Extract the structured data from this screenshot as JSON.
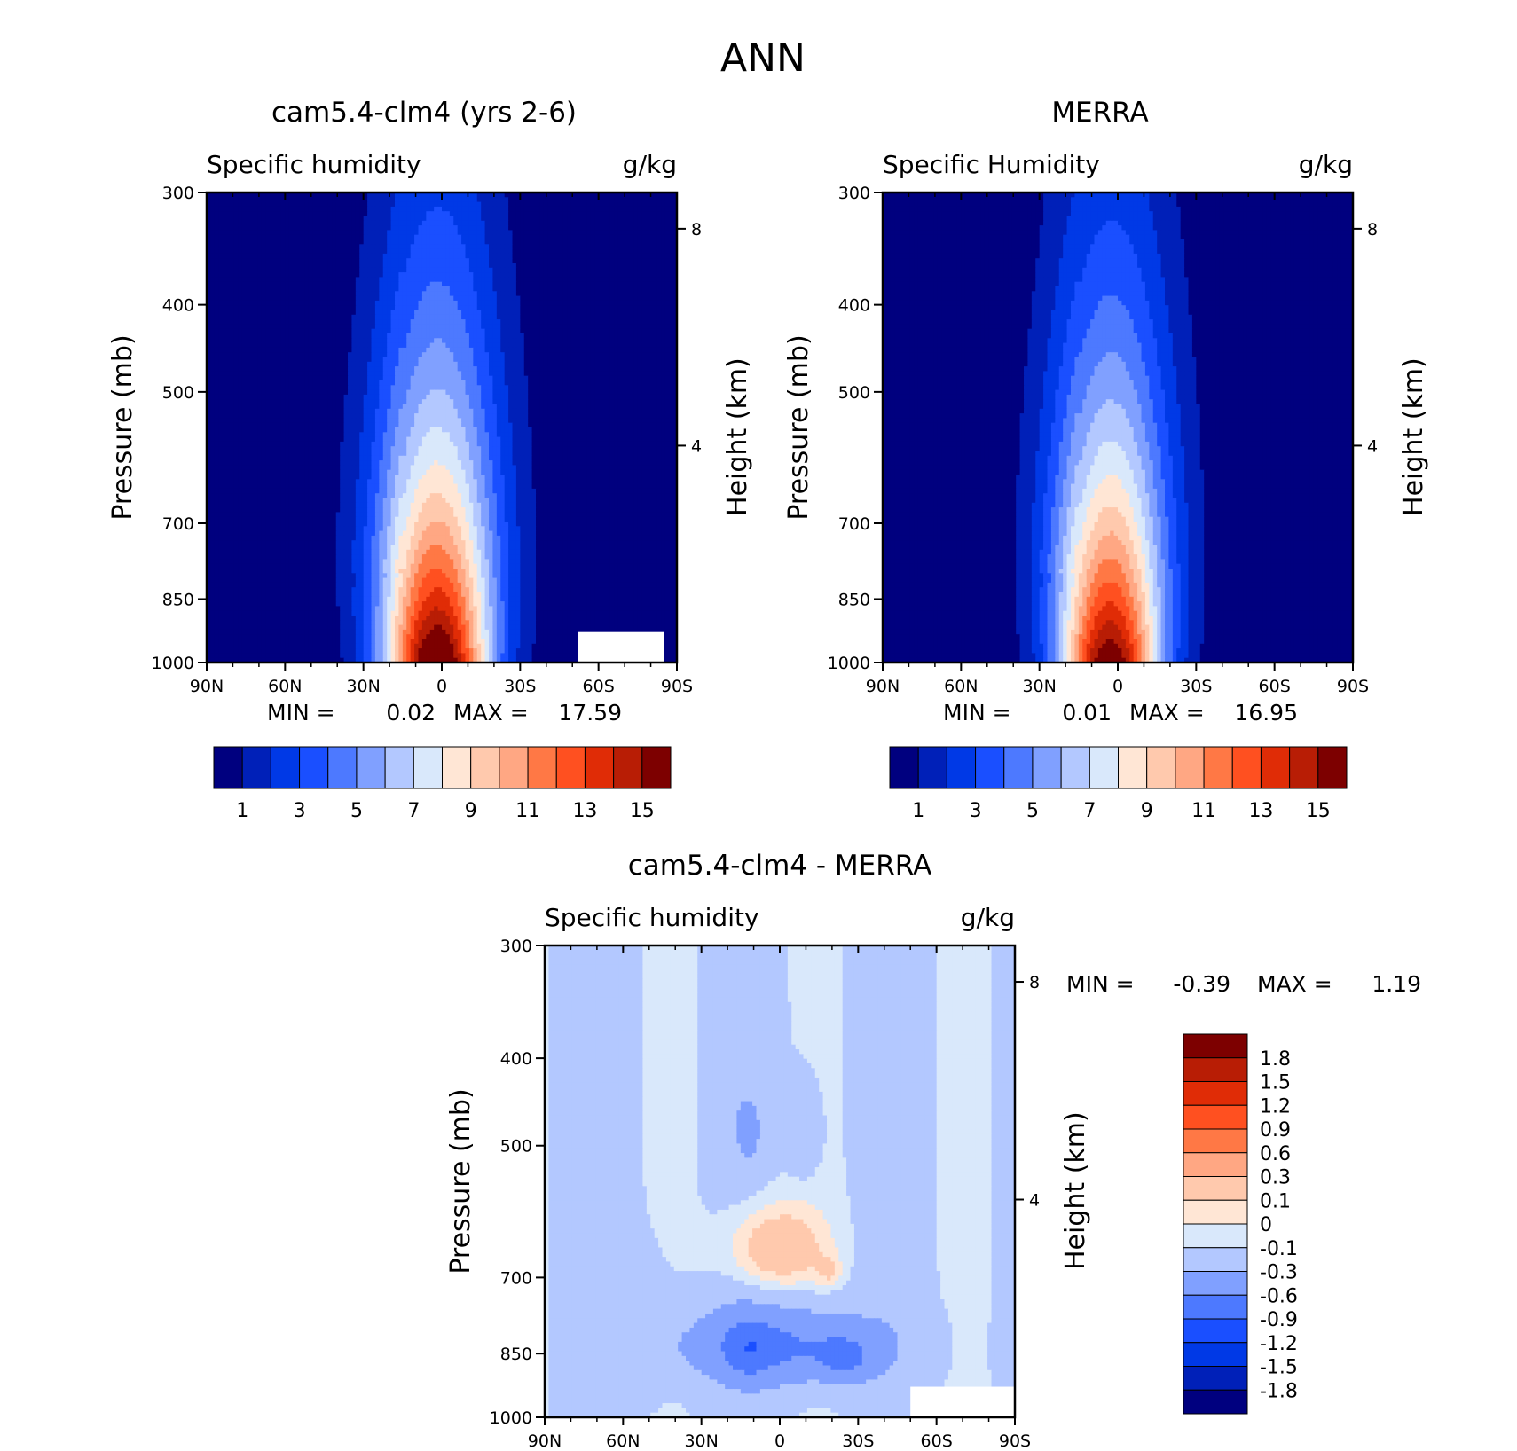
{
  "figure_title": "ANN",
  "chart_data": [
    {
      "type": "heatmap",
      "panel": "model",
      "title": "cam5.4-clm4 (yrs 2-6)",
      "left_label": "Specific humidity",
      "right_label": "g/kg",
      "ylabel": "Pressure (mb)",
      "ylabel_right": "Height (km)",
      "x_ticks": [
        "90N",
        "60N",
        "30N",
        "0",
        "30S",
        "60S",
        "90S"
      ],
      "y_ticks": [
        "300",
        "400",
        "500",
        "700",
        "850",
        "1000"
      ],
      "y_ticks_right": [
        "8",
        "4"
      ],
      "xlim": [
        90,
        -90
      ],
      "ylim": [
        1000,
        300
      ],
      "min_label": "MIN =",
      "min_value": "0.02",
      "max_label": "MAX =",
      "max_value": "17.59",
      "min": 0.02,
      "max": 17.59,
      "levels": [
        1,
        2,
        3,
        4,
        5,
        6,
        7,
        8,
        9,
        10,
        11,
        12,
        13,
        14,
        15
      ],
      "colorbar_labels": [
        "1",
        "3",
        "5",
        "7",
        "9",
        "11",
        "13",
        "15"
      ],
      "colorbar": "horizontal",
      "missing_region": {
        "lat": [
          -52,
          -85
        ],
        "pressure": [
          925,
          1000
        ]
      }
    },
    {
      "type": "heatmap",
      "panel": "obs",
      "title": "MERRA",
      "left_label": "Specific Humidity",
      "right_label": "g/kg",
      "ylabel": "Pressure (mb)",
      "ylabel_right": "Height (km)",
      "x_ticks": [
        "90N",
        "60N",
        "30N",
        "0",
        "30S",
        "60S",
        "90S"
      ],
      "y_ticks": [
        "300",
        "400",
        "500",
        "700",
        "850",
        "1000"
      ],
      "y_ticks_right": [
        "8",
        "4"
      ],
      "xlim": [
        90,
        -90
      ],
      "ylim": [
        1000,
        300
      ],
      "min_label": "MIN =",
      "min_value": "0.01",
      "max_label": "MAX =",
      "max_value": "16.95",
      "min": 0.01,
      "max": 16.95,
      "levels": [
        1,
        2,
        3,
        4,
        5,
        6,
        7,
        8,
        9,
        10,
        11,
        12,
        13,
        14,
        15
      ],
      "colorbar_labels": [
        "1",
        "3",
        "5",
        "7",
        "9",
        "11",
        "13",
        "15"
      ],
      "colorbar": "horizontal"
    },
    {
      "type": "heatmap",
      "panel": "difference",
      "title": "cam5.4-clm4 - MERRA",
      "left_label": "Specific humidity",
      "right_label": "g/kg",
      "ylabel": "Pressure (mb)",
      "ylabel_right": "Height (km)",
      "x_ticks": [
        "90N",
        "60N",
        "30N",
        "0",
        "30S",
        "60S",
        "90S"
      ],
      "y_ticks": [
        "300",
        "400",
        "500",
        "700",
        "850",
        "1000"
      ],
      "y_ticks_right": [
        "8",
        "4"
      ],
      "xlim": [
        90,
        -90
      ],
      "ylim": [
        1000,
        300
      ],
      "min_label": "MIN =",
      "min_value": "-0.39",
      "max_label": "MAX =",
      "max_value": "1.19",
      "min": -0.39,
      "max": 1.19,
      "levels": [
        -1.8,
        -1.5,
        -1.2,
        -0.9,
        -0.6,
        -0.3,
        -0.1,
        0,
        0.1,
        0.3,
        0.6,
        0.9,
        1.2,
        1.5,
        1.8
      ],
      "colorbar_labels": [
        "1.8",
        "1.5",
        "1.2",
        "0.9",
        "0.6",
        "0.3",
        "0.1",
        "0",
        "-0.1",
        "-0.3",
        "-0.6",
        "-0.9",
        "-1.2",
        "-1.5",
        "-1.8"
      ],
      "colorbar": "vertical",
      "missing_region": {
        "lat": [
          -50,
          -90
        ],
        "pressure": [
          925,
          1000
        ]
      }
    }
  ],
  "colors": [
    "#00007f",
    "#0020b8",
    "#0039e6",
    "#1a4fff",
    "#4d79ff",
    "#80a0ff",
    "#b3c8ff",
    "#d9e8fb",
    "#ffe6d5",
    "#ffc9ad",
    "#ffa783",
    "#ff7845",
    "#ff5020",
    "#e02c06",
    "#b81d05",
    "#7d0000"
  ]
}
